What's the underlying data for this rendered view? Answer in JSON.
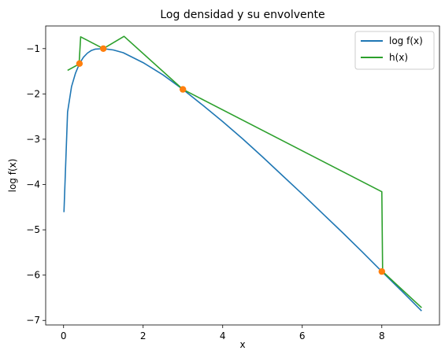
{
  "chart_data": {
    "type": "line",
    "title": "Log densidad y su envolvente",
    "xlabel": "x",
    "ylabel": "log f(x)",
    "xlim": [
      -0.45,
      9.45
    ],
    "ylim": [
      -7.1,
      -0.5
    ],
    "xticks": [
      0,
      2,
      4,
      6,
      8
    ],
    "yticks": [
      -7,
      -6,
      -5,
      -4,
      -3,
      -2,
      -1
    ],
    "xtick_labels": [
      "0",
      "2",
      "4",
      "6",
      "8"
    ],
    "ytick_labels": [
      "−7",
      "−6",
      "−5",
      "−4",
      "−3",
      "−2",
      "−1"
    ],
    "grid": false,
    "legend": "top-right",
    "series": [
      {
        "name": "log f(x)",
        "color": "#1f77b4",
        "kind": "line",
        "points": [
          [
            0.01,
            -4.61
          ],
          [
            0.1,
            -2.4
          ],
          [
            0.2,
            -1.84
          ],
          [
            0.3,
            -1.54
          ],
          [
            0.4,
            -1.33
          ],
          [
            0.5,
            -1.19
          ],
          [
            0.6,
            -1.1
          ],
          [
            0.7,
            -1.04
          ],
          [
            0.8,
            -1.01
          ],
          [
            1.0,
            -1.0
          ],
          [
            1.25,
            -1.03
          ],
          [
            1.5,
            -1.09
          ],
          [
            2.0,
            -1.31
          ],
          [
            2.5,
            -1.58
          ],
          [
            3.0,
            -1.9
          ],
          [
            3.5,
            -2.25
          ],
          [
            4.0,
            -2.61
          ],
          [
            4.5,
            -2.99
          ],
          [
            5.0,
            -3.39
          ],
          [
            5.5,
            -3.8
          ],
          [
            6.0,
            -4.21
          ],
          [
            6.5,
            -4.63
          ],
          [
            7.0,
            -5.05
          ],
          [
            7.5,
            -5.48
          ],
          [
            8.0,
            -5.92
          ],
          [
            8.5,
            -6.35
          ],
          [
            9.0,
            -6.79
          ]
        ]
      },
      {
        "name": "h(x)",
        "color": "#2ca02c",
        "kind": "line",
        "points": [
          [
            0.1,
            -1.48
          ],
          [
            0.39,
            -1.34
          ],
          [
            0.43,
            -0.74
          ],
          [
            1.0,
            -1.0
          ],
          [
            1.52,
            -0.73
          ],
          [
            3.0,
            -1.9
          ],
          [
            8.0,
            -4.16
          ],
          [
            8.02,
            -5.92
          ],
          [
            9.0,
            -6.72
          ]
        ]
      },
      {
        "name": "",
        "color": "#ff7f0e",
        "kind": "scatter",
        "points": [
          [
            0.4,
            -1.33
          ],
          [
            1.0,
            -1.0
          ],
          [
            3.0,
            -1.9
          ],
          [
            8.0,
            -5.92
          ]
        ]
      }
    ]
  }
}
